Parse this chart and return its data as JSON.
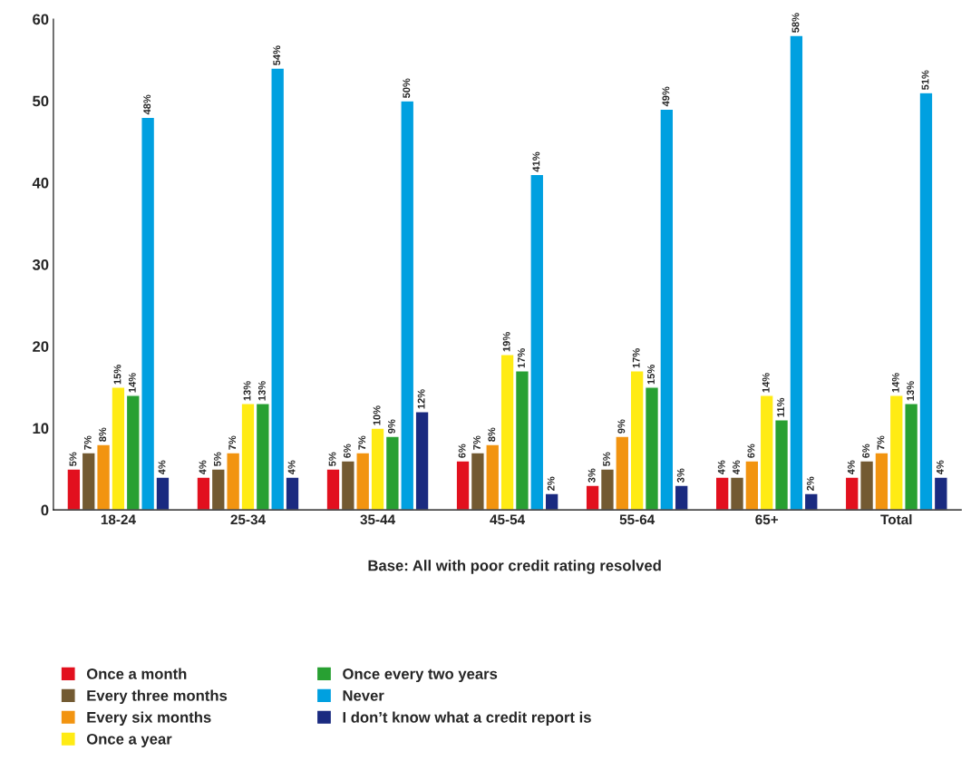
{
  "chart_data": {
    "type": "bar",
    "categories": [
      "18-24",
      "25-34",
      "35-44",
      "45-54",
      "55-64",
      "65+",
      "Total"
    ],
    "series": [
      {
        "name": "Once a month",
        "color": "#e2101e",
        "values": [
          5,
          4,
          5,
          6,
          3,
          4,
          4
        ],
        "value_labels": [
          "5%",
          "4%",
          "5%",
          "6%",
          "3%",
          "4%",
          "4%"
        ]
      },
      {
        "name": "Every three months",
        "color": "#735a32",
        "values": [
          7,
          5,
          6,
          7,
          5,
          4,
          6
        ],
        "value_labels": [
          "7%",
          "5%",
          "6%",
          "7%",
          "5%",
          "4%",
          "6%"
        ]
      },
      {
        "name": "Every six months",
        "color": "#f29410",
        "values": [
          8,
          7,
          7,
          8,
          9,
          6,
          7
        ],
        "value_labels": [
          "8%",
          "7%",
          "7%",
          "8%",
          "9%",
          "6%",
          "7%"
        ]
      },
      {
        "name": "Once a year",
        "color": "#ffeb14",
        "values": [
          15,
          13,
          10,
          19,
          17,
          14,
          14
        ],
        "value_labels": [
          "15%",
          "13%",
          "10%",
          "19%",
          "17%",
          "14%",
          "14%"
        ]
      },
      {
        "name": "Once every two years",
        "color": "#28a032",
        "values": [
          14,
          13,
          9,
          17,
          15,
          11,
          13
        ],
        "value_labels": [
          "14%",
          "13%",
          "9%",
          "17%",
          "15%",
          "11%",
          "13%"
        ]
      },
      {
        "name": "Never",
        "color": "#00a0e0",
        "values": [
          48,
          54,
          50,
          41,
          49,
          58,
          51
        ],
        "value_labels": [
          "48%",
          "54%",
          "50%",
          "41%",
          "49%",
          "58%",
          "51%"
        ]
      },
      {
        "name": "I don’t know what a credit report is",
        "color": "#1a2a80",
        "values": [
          4,
          4,
          12,
          2,
          3,
          2,
          4
        ],
        "value_labels": [
          "4%",
          "4%",
          "12%",
          "2%",
          "3%",
          "2%",
          "4%"
        ]
      }
    ],
    "ylim": [
      0,
      60
    ],
    "yticks": [
      0,
      10,
      20,
      30,
      40,
      50,
      60
    ],
    "annotations": [
      "Base: All with poor credit rating resolved"
    ],
    "legend": "bottom left",
    "grid": false
  }
}
